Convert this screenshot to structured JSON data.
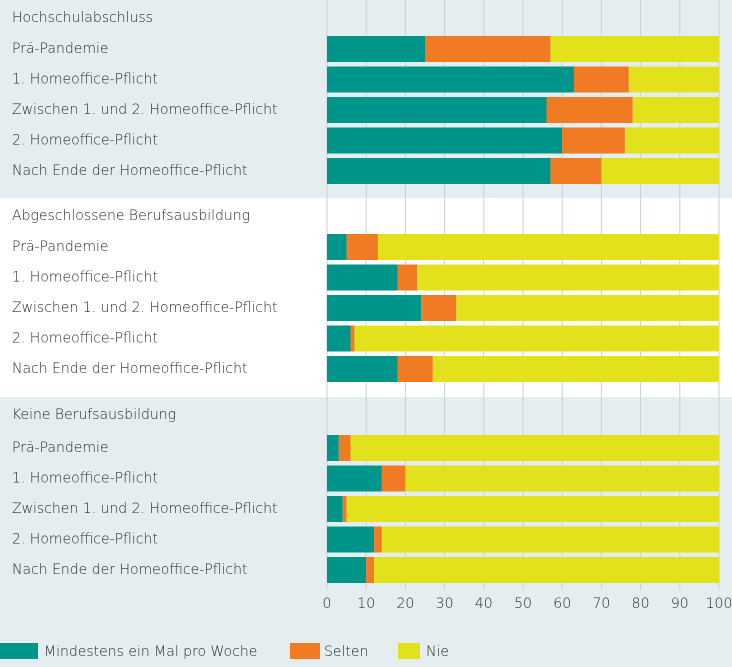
{
  "chart_data": {
    "type": "bar",
    "orientation": "horizontal",
    "stacked": true,
    "xlim": [
      0,
      100
    ],
    "xticks": [
      0,
      10,
      20,
      30,
      40,
      50,
      60,
      70,
      80,
      90,
      100
    ],
    "grid": true,
    "legend": "bottom-left",
    "series": [
      {
        "name": "Mindestens ein Mal pro Woche",
        "color": "#00958a"
      },
      {
        "name": "Selten",
        "color": "#f07b23"
      },
      {
        "name": "Nie",
        "color": "#e3e01c"
      }
    ],
    "groups": [
      {
        "title": "Hochschulabschluss",
        "categories": [
          "Prä-Pandemie",
          "1. Homeoffice-Pflicht",
          "Zwischen 1. und 2. Homeoffice-Pflicht",
          "2. Homeoffice-Pflicht",
          "Nach Ende der Homeoffice-Pflicht"
        ],
        "values": [
          [
            25,
            63,
            56,
            60,
            57
          ],
          [
            32,
            14,
            22,
            16,
            13
          ],
          [
            43,
            23,
            22,
            24,
            30
          ]
        ]
      },
      {
        "title": "Abgeschlossene Berufsausbildung",
        "categories": [
          "Prä-Pandemie",
          "1. Homeoffice-Pflicht",
          "Zwischen 1. und 2. Homeoffice-Pflicht",
          "2. Homeoffice-Pflicht",
          "Nach Ende der Homeoffice-Pflicht"
        ],
        "values": [
          [
            5,
            18,
            24,
            6,
            18
          ],
          [
            8,
            5,
            9,
            1,
            9
          ],
          [
            87,
            77,
            67,
            93,
            73
          ]
        ]
      },
      {
        "title": "Keine Berufsausbildung",
        "categories": [
          "Prä-Pandemie",
          "1. Homeoffice-Pflicht",
          "Zwischen 1. und 2. Homeoffice-Pflicht",
          "2. Homeoffice-Pflicht",
          "Nach Ende der Homeoffice-Pflicht"
        ],
        "values": [
          [
            3,
            14,
            4,
            12,
            10
          ],
          [
            3,
            6,
            1,
            2,
            2
          ],
          [
            94,
            80,
            95,
            86,
            88
          ]
        ]
      }
    ]
  }
}
